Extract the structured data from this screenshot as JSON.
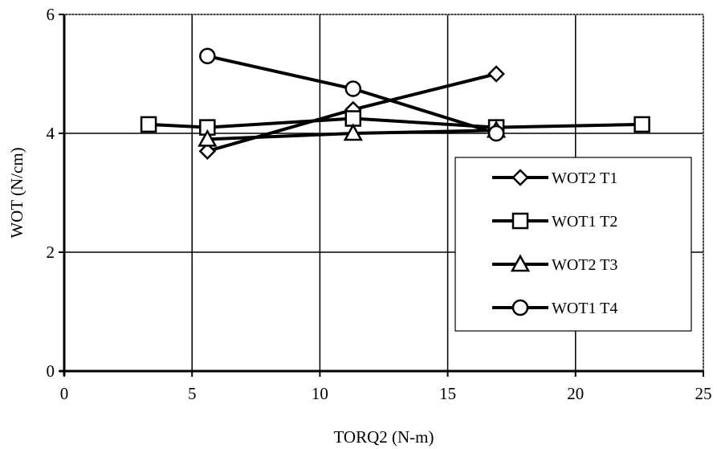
{
  "chart_data": {
    "type": "line",
    "title": "",
    "xlabel": "TORQ2 (N-m)",
    "ylabel": "WOT (N/cm)",
    "xlim": [
      0,
      25
    ],
    "ylim": [
      0,
      6
    ],
    "xticks": [
      0,
      5,
      10,
      15,
      20,
      25
    ],
    "yticks": [
      0,
      2,
      4,
      6
    ],
    "xtick_labels": [
      "0",
      "5",
      "10",
      "15",
      "20",
      "25"
    ],
    "ytick_labels": [
      "0",
      "2",
      "4",
      "6"
    ],
    "grid": true,
    "legend_position": "right",
    "series": [
      {
        "name": "WOT2 T1",
        "marker": "diamond",
        "x": [
          5.6,
          11.3,
          16.9
        ],
        "y": [
          3.7,
          4.4,
          5.0
        ]
      },
      {
        "name": "WOT1 T2",
        "marker": "square",
        "x": [
          3.3,
          5.6,
          11.3,
          16.9,
          22.6
        ],
        "y": [
          4.15,
          4.1,
          4.25,
          4.1,
          4.15
        ]
      },
      {
        "name": "WOT2 T3",
        "marker": "triangle",
        "x": [
          5.6,
          11.3,
          16.9
        ],
        "y": [
          3.9,
          4.0,
          4.05
        ]
      },
      {
        "name": "WOT1 T4",
        "marker": "circle",
        "x": [
          5.6,
          11.3,
          16.9
        ],
        "y": [
          5.3,
          4.75,
          4.0
        ]
      }
    ]
  }
}
